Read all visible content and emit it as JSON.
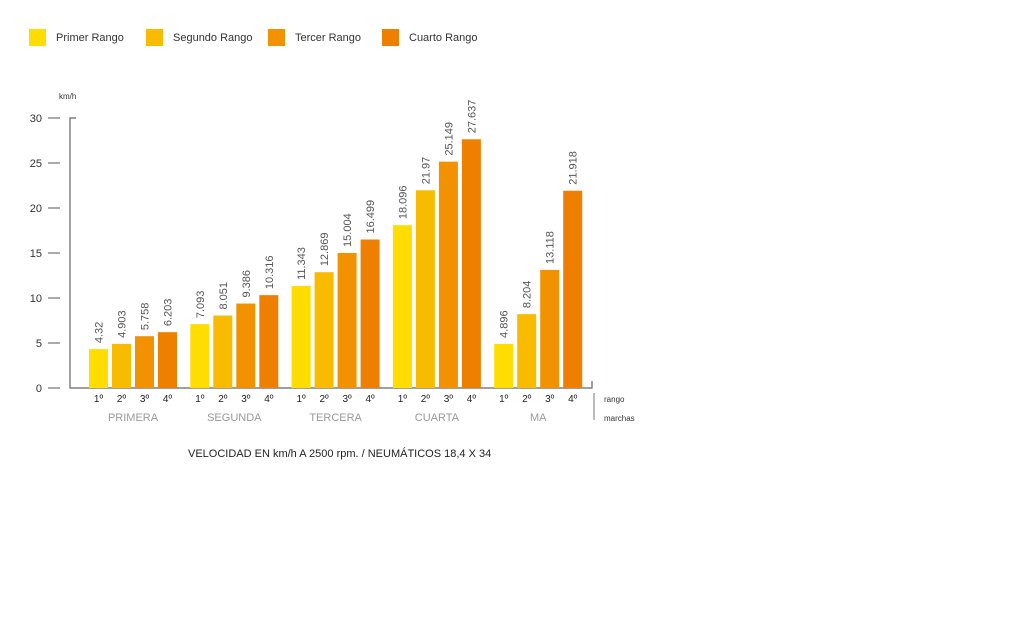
{
  "chart_data": {
    "type": "bar",
    "title": "VELOCIDAD EN km/h A 2500 rpm. / NEUMÁTICOS 18,4 X 34",
    "ylabel": "km/h",
    "ylim": [
      0,
      30
    ],
    "yticks": [
      "0",
      "5",
      "10",
      "15",
      "20",
      "25",
      "30"
    ],
    "groups": [
      "PRIMERA",
      "SEGUNDA",
      "TERCERA",
      "CUARTA",
      "MA"
    ],
    "gear_labels": [
      "1º",
      "2º",
      "3º",
      "4º"
    ],
    "x_axis_labels": {
      "rango": "rango",
      "marchas": "marchas"
    },
    "series": [
      {
        "name": "Primer Rango",
        "color": "#FFDD00",
        "values": [
          4.32,
          7.093,
          11.343,
          18.096,
          4.896
        ],
        "labels": [
          "4.32",
          "7.093",
          "11.343",
          "18.096",
          "4.896"
        ]
      },
      {
        "name": "Segundo Rango",
        "color": "#F9BB00",
        "values": [
          4.903,
          8.051,
          12.869,
          21.97,
          8.204
        ],
        "labels": [
          "4.903",
          "8.051",
          "12.869",
          "21.97",
          "8.204"
        ]
      },
      {
        "name": "Tercer Rango",
        "color": "#F39200",
        "values": [
          5.758,
          9.386,
          15.004,
          25.149,
          13.118
        ],
        "labels": [
          "5.758",
          "9.386",
          "15.004",
          "25.149",
          "13.118"
        ]
      },
      {
        "name": "Cuarto Rango",
        "color": "#EE7F00",
        "values": [
          6.203,
          10.316,
          16.499,
          27.637,
          21.918
        ],
        "labels": [
          "6.203",
          "10.316",
          "16.499",
          "27.637",
          "21.918"
        ]
      }
    ],
    "legend": "top-left"
  }
}
